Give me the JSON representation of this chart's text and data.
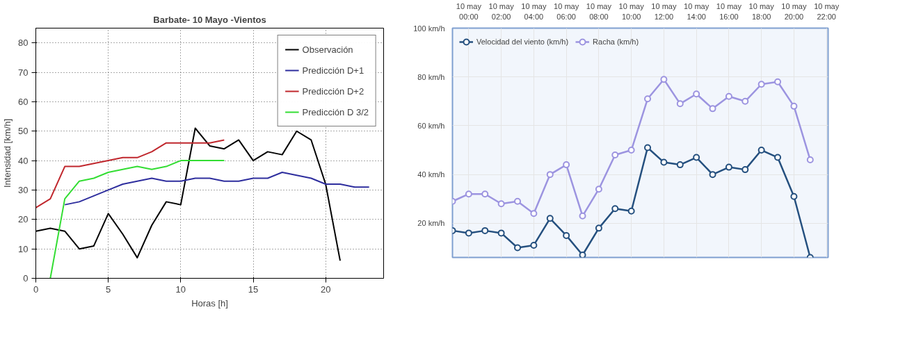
{
  "chart_data": [
    {
      "type": "line",
      "title": "Barbate- 10 Mayo -Vientos",
      "xlabel": "Horas [h]",
      "ylabel": "Intensidad [km/h]",
      "xlim": [
        0,
        24
      ],
      "ylim": [
        0,
        85
      ],
      "xticks": [
        0,
        5,
        10,
        15,
        20
      ],
      "yticks": [
        0,
        10,
        20,
        30,
        40,
        50,
        60,
        70,
        80
      ],
      "grid": true,
      "legend": "top right",
      "marker": "none",
      "line_style": "solid",
      "series": [
        {
          "name": "Observación",
          "color": "#000000",
          "x": [
            0,
            1,
            2,
            3,
            4,
            5,
            6,
            7,
            8,
            9,
            10,
            11,
            12,
            13,
            14,
            15,
            16,
            17,
            18,
            19,
            20,
            21
          ],
          "values": [
            16,
            17,
            16,
            10,
            11,
            22,
            15,
            7,
            18,
            26,
            25,
            51,
            45,
            44,
            47,
            40,
            43,
            42,
            50,
            47,
            32,
            6
          ]
        },
        {
          "name": "Predicción D+1",
          "color": "#2e2e9e",
          "x": [
            2,
            3,
            4,
            5,
            6,
            7,
            8,
            9,
            10,
            11,
            12,
            13,
            14,
            15,
            16,
            17,
            18,
            19,
            20,
            21,
            22,
            23
          ],
          "values": [
            25,
            26,
            28,
            30,
            32,
            33,
            34,
            33,
            33,
            34,
            34,
            33,
            33,
            34,
            34,
            36,
            35,
            34,
            32,
            32,
            31,
            31
          ]
        },
        {
          "name": "Predicción D+2",
          "color": "#c0272d",
          "x": [
            0,
            1,
            2,
            3,
            4,
            5,
            6,
            7,
            8,
            9,
            10,
            11,
            12,
            13
          ],
          "values": [
            24,
            27,
            38,
            38,
            39,
            40,
            41,
            41,
            43,
            46,
            46,
            46,
            46,
            47
          ]
        },
        {
          "name": "Predicción D 3/2",
          "color": "#33dd33",
          "x": [
            1,
            2,
            3,
            4,
            5,
            6,
            7,
            8,
            9,
            10,
            11,
            12,
            13
          ],
          "values": [
            0,
            27,
            33,
            34,
            36,
            37,
            38,
            37,
            38,
            40,
            40,
            40,
            40
          ]
        }
      ]
    },
    {
      "type": "line",
      "categories": [
        null,
        "10 may\n00:00",
        null,
        "10 may\n02:00",
        null,
        "10 may\n04:00",
        null,
        "10 may\n06:00",
        null,
        "10 may\n08:00",
        null,
        "10 may\n10:00",
        null,
        "10 may\n12:00",
        null,
        "10 may\n14:00",
        null,
        "10 may\n16:00",
        null,
        "10 may\n18:00",
        null,
        "10 may\n20:00",
        null,
        "10 may\n22:00"
      ],
      "ylim": [
        6,
        100
      ],
      "yticks": [
        {
          "value": 20,
          "label": "20 km/h"
        },
        {
          "value": 40,
          "label": "40 km/h"
        },
        {
          "value": 60,
          "label": "60 km/h"
        },
        {
          "value": 80,
          "label": "80 km/h"
        },
        {
          "value": 100,
          "label": "100 km/h"
        }
      ],
      "grid": true,
      "legend": "top left",
      "marker": "circle",
      "line_style": "solid",
      "series": [
        {
          "name": "Velocidad del viento (km/h)",
          "color": "#25507f",
          "values": [
            17,
            16,
            17,
            16,
            10,
            11,
            22,
            15,
            7,
            18,
            26,
            25,
            51,
            45,
            44,
            47,
            40,
            43,
            42,
            50,
            47,
            31,
            6,
            null
          ]
        },
        {
          "name": "Racha (km/h)",
          "color": "#9c94e0",
          "values": [
            29,
            32,
            32,
            28,
            29,
            24,
            40,
            44,
            23,
            34,
            48,
            50,
            71,
            79,
            69,
            73,
            67,
            72,
            70,
            77,
            78,
            68,
            46,
            null
          ]
        }
      ]
    }
  ]
}
